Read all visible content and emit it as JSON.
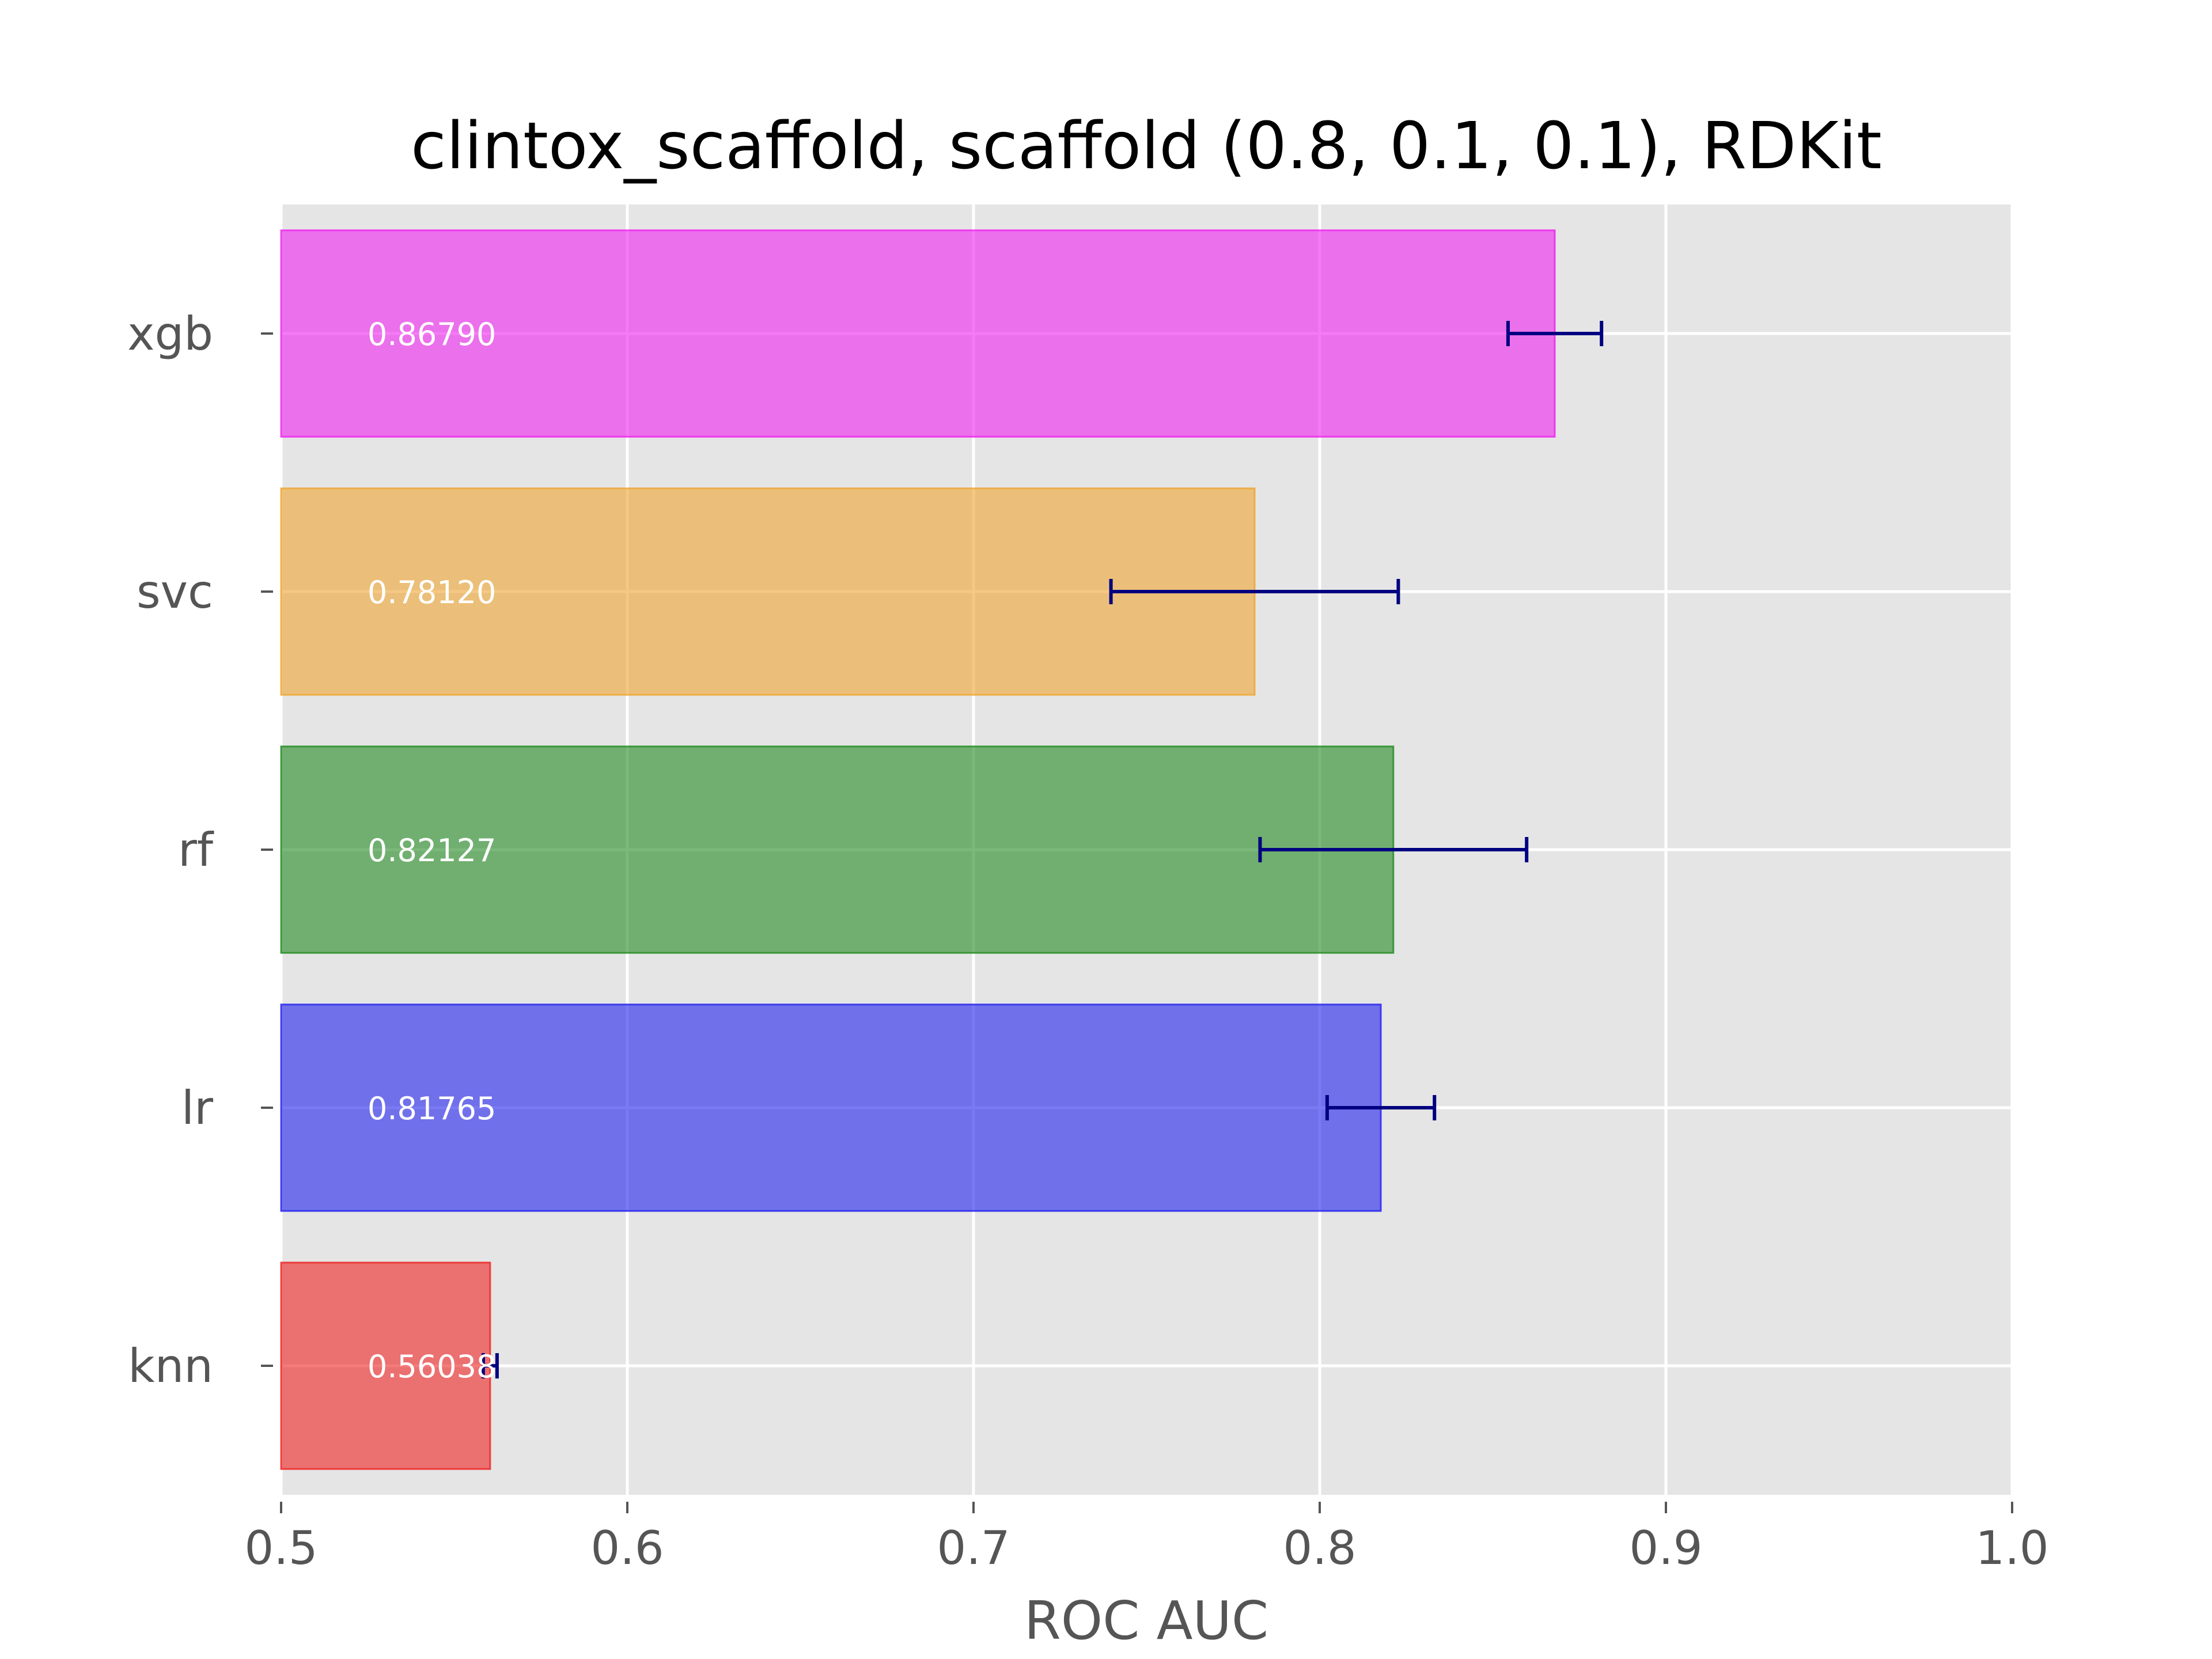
{
  "chart_data": {
    "type": "bar",
    "orientation": "horizontal",
    "title": "clintox_scaffold, scaffold (0.8, 0.1, 0.1), RDKit",
    "xlabel": "ROC AUC",
    "ylabel": "",
    "xlim": [
      0.5,
      1.0
    ],
    "xticks": [
      "0.5",
      "0.6",
      "0.7",
      "0.8",
      "0.9",
      "1.0"
    ],
    "grid": true,
    "background_color": "#e5e5e5",
    "error_bar_color": "#000080",
    "bars": [
      {
        "category": "knn",
        "value": 0.56038,
        "label": "0.56038",
        "err": 0.002,
        "color": "#ee2222"
      },
      {
        "category": "lr",
        "value": 0.81765,
        "label": "0.81765",
        "err": 0.0155,
        "color": "#2222ee"
      },
      {
        "category": "rf",
        "value": 0.82127,
        "label": "0.82127",
        "err": 0.0385,
        "color": "#228b22"
      },
      {
        "category": "svc",
        "value": 0.7812,
        "label": "0.78120",
        "err": 0.0415,
        "color": "#eea530"
      },
      {
        "category": "xgb",
        "value": 0.8679,
        "label": "0.86790",
        "err": 0.0135,
        "color": "#ee22ee"
      }
    ]
  }
}
